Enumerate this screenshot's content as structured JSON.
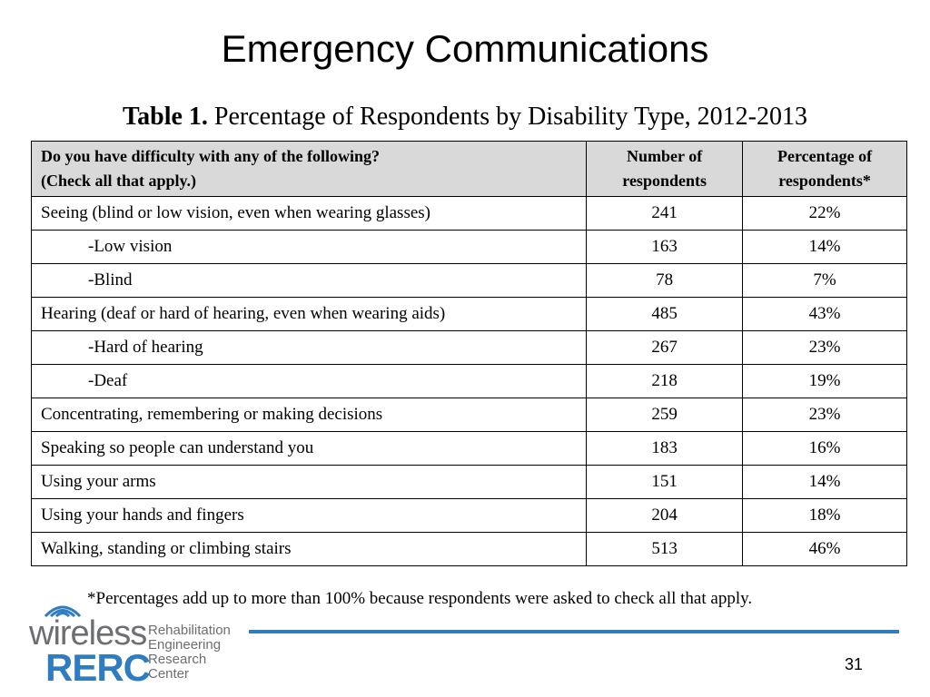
{
  "slide": {
    "title": "Emergency Communications",
    "page_number": "31"
  },
  "caption": {
    "label": "Table 1.",
    "text": " Percentage of Respondents by Disability Type, 2012-2013"
  },
  "table": {
    "headers": {
      "question_line1": "Do you have difficulty with any of the following?",
      "question_line2": "(Check all that apply.)",
      "count_line1": "Number of",
      "count_line2": "respondents",
      "pct_line1": "Percentage of",
      "pct_line2": "respondents*"
    },
    "rows": [
      {
        "label": "Seeing (blind or low vision, even when wearing glasses)",
        "count": "241",
        "pct": "22%"
      },
      {
        "label": "-Low vision",
        "count": "163",
        "pct": "14%"
      },
      {
        "label": "-Blind",
        "count": "78",
        "pct": "7%"
      },
      {
        "label": "Hearing (deaf or hard of hearing, even when wearing aids)",
        "count": "485",
        "pct": "43%"
      },
      {
        "label": "-Hard of hearing",
        "count": "267",
        "pct": "23%"
      },
      {
        "label": "-Deaf",
        "count": "218",
        "pct": "19%"
      },
      {
        "label": "Concentrating, remembering or making decisions",
        "count": "259",
        "pct": "23%"
      },
      {
        "label": "Speaking so people can understand you",
        "count": "183",
        "pct": "16%"
      },
      {
        "label": "Using your arms",
        "count": "151",
        "pct": "14%"
      },
      {
        "label": "Using your hands and fingers",
        "count": "204",
        "pct": "18%"
      },
      {
        "label": "Walking, standing or climbing stairs",
        "count": "513",
        "pct": "46%"
      }
    ]
  },
  "footnote": "*Percentages add up to more than 100% because respondents were asked to check all that apply.",
  "logo": {
    "word1": "wireless",
    "word2": "RERC",
    "sub1": "Rehabilitation",
    "sub2": "Engineering",
    "sub3": "Research",
    "sub4": "Center",
    "brand_blue": "#2f7cc0",
    "brand_gray": "#6d6e71"
  }
}
